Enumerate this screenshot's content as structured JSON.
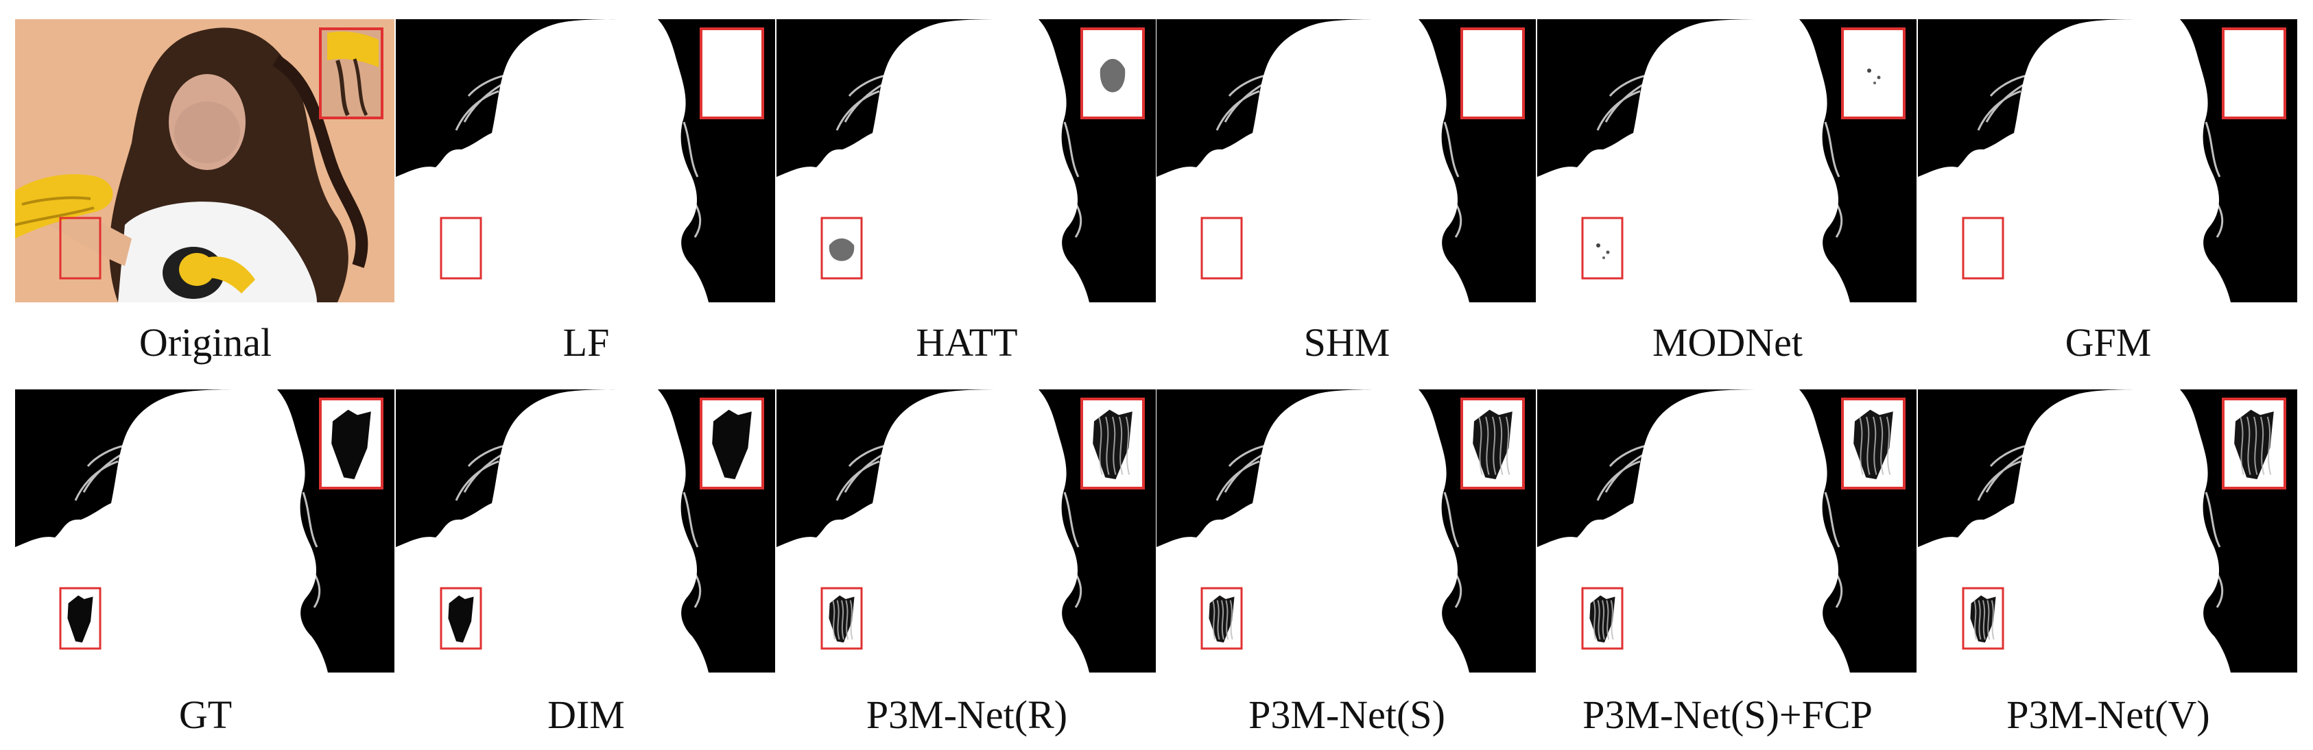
{
  "figure": {
    "row1": [
      {
        "label": "Original",
        "kind": "photo",
        "fill": "none"
      },
      {
        "label": "LF",
        "kind": "matte",
        "fill": "empty"
      },
      {
        "label": "HATT",
        "kind": "matte",
        "fill": "blob"
      },
      {
        "label": "SHM",
        "kind": "matte",
        "fill": "empty"
      },
      {
        "label": "MODNet",
        "kind": "matte",
        "fill": "specks"
      },
      {
        "label": "GFM",
        "kind": "matte",
        "fill": "empty"
      }
    ],
    "row2": [
      {
        "label": "GT",
        "kind": "matte",
        "fill": "solid"
      },
      {
        "label": "DIM",
        "kind": "matte",
        "fill": "solid"
      },
      {
        "label": "P3M-Net(R)",
        "kind": "matte",
        "fill": "strands"
      },
      {
        "label": "P3M-Net(S)",
        "kind": "matte",
        "fill": "strands"
      },
      {
        "label": "P3M-Net(S)+FCP",
        "kind": "matte",
        "fill": "strands"
      },
      {
        "label": "P3M-Net(V)",
        "kind": "matte",
        "fill": "strands"
      }
    ],
    "colors": {
      "background": "#000000",
      "foreground": "#ffffff",
      "highlight_box": "#e03131",
      "photo_bg": "#eab68f"
    }
  }
}
